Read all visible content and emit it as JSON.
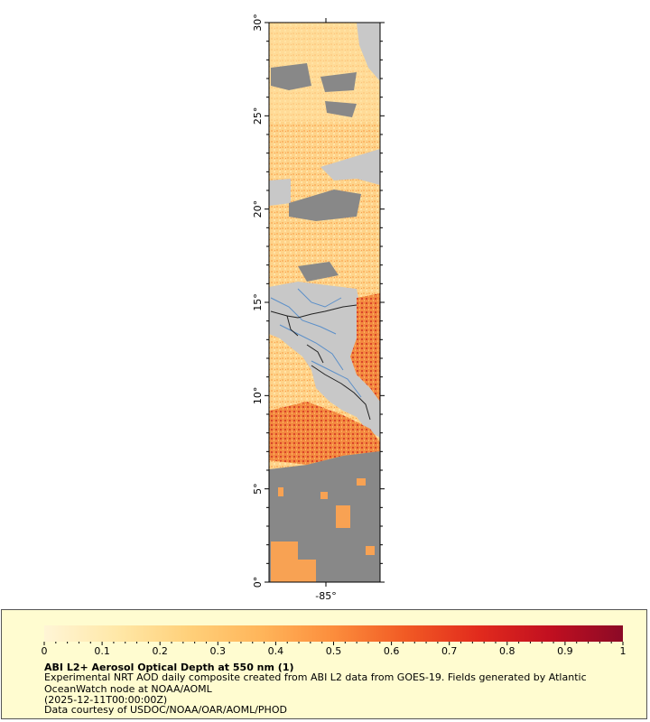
{
  "map": {
    "lat_ticks": [
      "0°",
      "5°",
      "10°",
      "15°",
      "20°",
      "25°",
      "30°"
    ],
    "lon_ticks": [
      "-85°"
    ],
    "colors": {
      "land": "#c8c8c8",
      "nodata": "#888888",
      "rivers": "#5b8fc9",
      "borders": "#222222",
      "frame": "#000000"
    }
  },
  "legend": {
    "colorbar_colors": [
      "#fff5d6",
      "#ffe8a8",
      "#ffd07a",
      "#ffb55a",
      "#fc8d3c",
      "#f15a24",
      "#e22b1d",
      "#c10f20",
      "#8b0a26"
    ],
    "tick_labels": [
      "0",
      "0.1",
      "0.2",
      "0.3",
      "0.4",
      "0.5",
      "0.6",
      "0.7",
      "0.8",
      "0.9",
      "1"
    ],
    "title": "ABI L2+ Aerosol Optical Depth at 550 nm (1)",
    "description": "Experimental NRT AOD daily composite created from ABI L2 data from GOES-19. Fields generated by Atlantic OceanWatch node at NOAA/AOML",
    "time": "(2025-12-11T00:00:00Z)",
    "credit": "Data courtesy of USDOC/NOAA/OAR/AOML/PHOD"
  }
}
